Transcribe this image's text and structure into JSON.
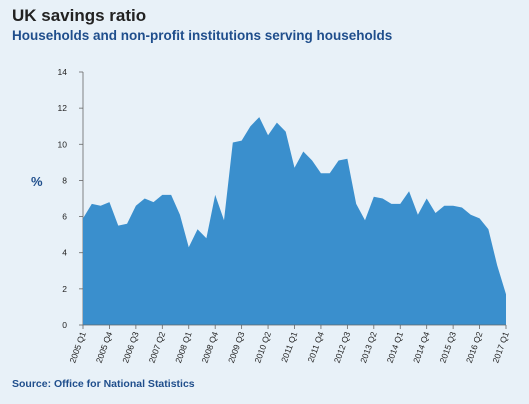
{
  "chart_data": {
    "type": "area",
    "title": "UK savings ratio",
    "subtitle": "Households and non-profit institutions serving households",
    "ylabel": "%",
    "xlabel": "",
    "ylim": [
      0,
      14
    ],
    "yticks": [
      0,
      2,
      4,
      6,
      8,
      10,
      12,
      14
    ],
    "grid": false,
    "color": "#3a8fcd",
    "x_tick_labels": [
      "2005 Q1",
      "2005 Q4",
      "2006 Q3",
      "2007 Q2",
      "2008 Q1",
      "2008 Q4",
      "2009 Q3",
      "2010 Q2",
      "2011 Q1",
      "2011 Q4",
      "2012 Q3",
      "2013 Q2",
      "2014 Q1",
      "2014 Q4",
      "2015 Q3",
      "2016 Q2",
      "2017 Q1"
    ],
    "x": [
      "2005 Q1",
      "2005 Q2",
      "2005 Q3",
      "2005 Q4",
      "2006 Q1",
      "2006 Q2",
      "2006 Q3",
      "2006 Q4",
      "2007 Q1",
      "2007 Q2",
      "2007 Q3",
      "2007 Q4",
      "2008 Q1",
      "2008 Q2",
      "2008 Q3",
      "2008 Q4",
      "2009 Q1",
      "2009 Q2",
      "2009 Q3",
      "2009 Q4",
      "2010 Q1",
      "2010 Q2",
      "2010 Q3",
      "2010 Q4",
      "2011 Q1",
      "2011 Q2",
      "2011 Q3",
      "2011 Q4",
      "2012 Q1",
      "2012 Q2",
      "2012 Q3",
      "2012 Q4",
      "2013 Q1",
      "2013 Q2",
      "2013 Q3",
      "2013 Q4",
      "2014 Q1",
      "2014 Q2",
      "2014 Q3",
      "2014 Q4",
      "2015 Q1",
      "2015 Q2",
      "2015 Q3",
      "2015 Q4",
      "2016 Q1",
      "2016 Q2",
      "2016 Q3",
      "2016 Q4",
      "2017 Q1"
    ],
    "values": [
      5.9,
      6.7,
      6.6,
      6.8,
      5.5,
      5.6,
      6.6,
      7.0,
      6.8,
      7.2,
      7.2,
      6.1,
      4.3,
      5.3,
      4.8,
      7.2,
      5.8,
      10.1,
      10.2,
      11.0,
      11.5,
      10.5,
      11.2,
      10.7,
      8.7,
      9.6,
      9.1,
      8.4,
      8.4,
      9.1,
      9.2,
      6.7,
      5.8,
      7.1,
      7.0,
      6.7,
      6.7,
      7.4,
      6.1,
      7.0,
      6.2,
      6.6,
      6.6,
      6.5,
      6.1,
      5.9,
      5.3,
      3.3,
      1.7
    ]
  },
  "source": "Source: Office for National Statistics"
}
